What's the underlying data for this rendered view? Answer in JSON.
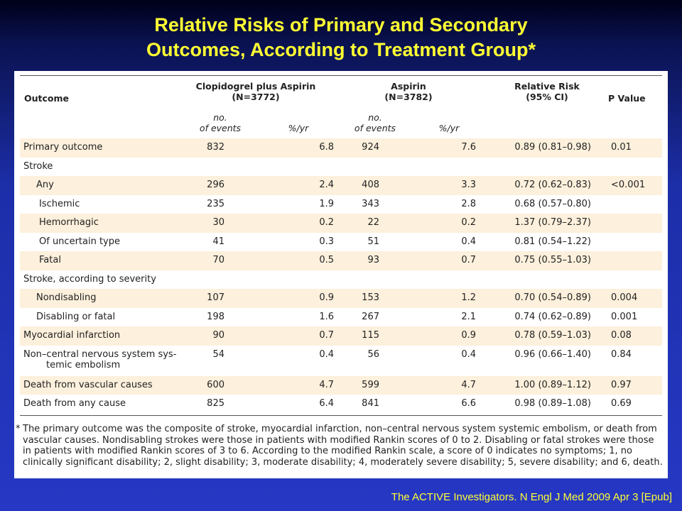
{
  "title": {
    "line1": "Relative Risks of Primary and Secondary",
    "line2": "Outcomes, According to Treatment Group*"
  },
  "table": {
    "headers": {
      "outcome": "Outcome",
      "group1_line1": "Clopidogrel plus Aspirin",
      "group1_line2": "(N=3772)",
      "group2_line1": "Aspirin",
      "group2_line2": "(N=3782)",
      "rr_line1": "Relative Risk",
      "rr_line2": "(95% CI)",
      "pvalue": "P Value"
    },
    "subheaders": {
      "events_line1": "no.",
      "events_line2": "of events",
      "rate": "%/yr"
    },
    "rows": [
      {
        "outcome": "Primary outcome",
        "n1": "832",
        "p1": "6.8",
        "n2": "924",
        "p2": "7.6",
        "rr": "0.89 (0.81–0.98)",
        "pv": "0.01",
        "indent": 0,
        "shade": true
      },
      {
        "outcome": "Stroke",
        "n1": "",
        "p1": "",
        "n2": "",
        "p2": "",
        "rr": "",
        "pv": "",
        "indent": 0,
        "shade": false
      },
      {
        "outcome": "Any",
        "n1": "296",
        "p1": "2.4",
        "n2": "408",
        "p2": "3.3",
        "rr": "0.72 (0.62–0.83)",
        "pv": "<0.001",
        "indent": 1,
        "shade": true
      },
      {
        "outcome": "Ischemic",
        "n1": "235",
        "p1": "1.9",
        "n2": "343",
        "p2": "2.8",
        "rr": "0.68 (0.57–0.80)",
        "pv": "",
        "indent": 2,
        "shade": false
      },
      {
        "outcome": "Hemorrhagic",
        "n1": "30",
        "p1": "0.2",
        "n2": "22",
        "p2": "0.2",
        "rr": "1.37 (0.79–2.37)",
        "pv": "",
        "indent": 2,
        "shade": true
      },
      {
        "outcome": "Of uncertain type",
        "n1": "41",
        "p1": "0.3",
        "n2": "51",
        "p2": "0.4",
        "rr": "0.81 (0.54–1.22)",
        "pv": "",
        "indent": 2,
        "shade": false
      },
      {
        "outcome": "Fatal",
        "n1": "70",
        "p1": "0.5",
        "n2": "93",
        "p2": "0.7",
        "rr": "0.75 (0.55–1.03)",
        "pv": "",
        "indent": 2,
        "shade": true
      },
      {
        "outcome": "Stroke, according to severity",
        "n1": "",
        "p1": "",
        "n2": "",
        "p2": "",
        "rr": "",
        "pv": "",
        "indent": 0,
        "shade": false
      },
      {
        "outcome": "Nondisabling",
        "n1": "107",
        "p1": "0.9",
        "n2": "153",
        "p2": "1.2",
        "rr": "0.70 (0.54–0.89)",
        "pv": "0.004",
        "indent": 1,
        "shade": true
      },
      {
        "outcome": "Disabling or fatal",
        "n1": "198",
        "p1": "1.6",
        "n2": "267",
        "p2": "2.1",
        "rr": "0.74 (0.62–0.89)",
        "pv": "0.001",
        "indent": 1,
        "shade": false
      },
      {
        "outcome": "Myocardial infarction",
        "n1": "90",
        "p1": "0.7",
        "n2": "115",
        "p2": "0.9",
        "rr": "0.78 (0.59–1.03)",
        "pv": "0.08",
        "indent": 0,
        "shade": true
      },
      {
        "outcome": "Non–central nervous system sys-",
        "outcome2": "temic embolism",
        "n1": "54",
        "p1": "0.4",
        "n2": "56",
        "p2": "0.4",
        "rr": "0.96 (0.66–1.40)",
        "pv": "0.84",
        "indent": 0,
        "shade": false
      },
      {
        "outcome": "Death from vascular causes",
        "n1": "600",
        "p1": "4.7",
        "n2": "599",
        "p2": "4.7",
        "rr": "1.00 (0.89–1.12)",
        "pv": "0.97",
        "indent": 0,
        "shade": true
      },
      {
        "outcome": "Death from any cause",
        "n1": "825",
        "p1": "6.4",
        "n2": "841",
        "p2": "6.6",
        "rr": "0.98 (0.89–1.08)",
        "pv": "0.69",
        "indent": 0,
        "shade": false
      }
    ]
  },
  "footnote": {
    "marker": "*",
    "text": "The primary outcome was the composite of stroke, myocardial infarction, non–central nervous system systemic embolism, or death from vascular causes. Nondisabling strokes were those in patients with modified Rankin scores of 0 to 2. Disabling or fatal strokes were those in patients with modified Rankin scores of 3 to 6. According to the modified Rankin scale, a score of 0 indicates no symptoms; 1, no clinically significant disability; 2, slight disability; 3, moderate disability; 4, moderately severe disability; 5, severe disability; and 6, death."
  },
  "citation": "The ACTIVE Investigators. N Engl J Med 2009 Apr 3 [Epub]",
  "colors": {
    "title": "#ffff33",
    "row_shade": "#fdf0dc",
    "background": "#2638c4"
  }
}
